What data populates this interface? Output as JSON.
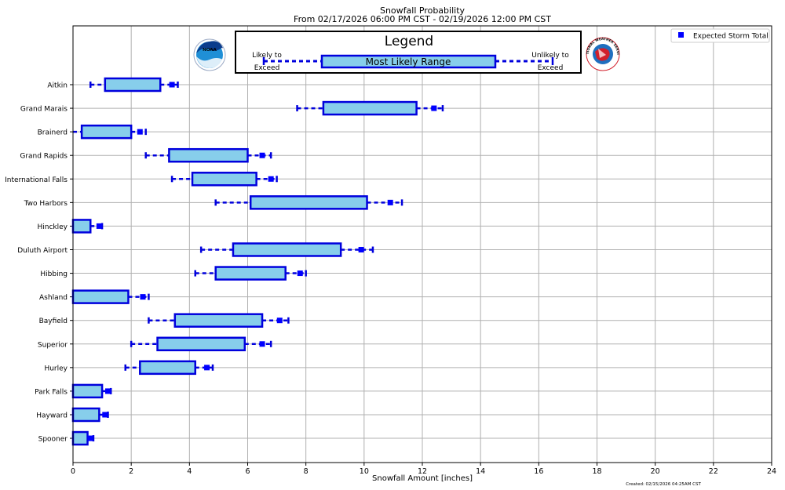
{
  "chart_data": {
    "type": "box",
    "title": "Snowfall Probability",
    "subtitle": "From 02/17/2026 06:00 PM CST - 02/19/2026 12:00 PM CST",
    "xlabel": "Snowfall Amount [inches]",
    "xlim": [
      0,
      24
    ],
    "xticks": [
      0,
      2,
      4,
      6,
      8,
      10,
      12,
      14,
      16,
      18,
      20,
      22,
      24
    ],
    "grid": true,
    "legend_entry": "Expected Storm Total",
    "legend_placement": "top-right",
    "created": "Created: 02/15/2026 04:25AM CST",
    "legend_box": {
      "title": "Legend",
      "left_label_line1": "Likely to",
      "left_label_line2": "Exceed",
      "center_label": "Most Likely Range",
      "right_label_line1": "Unlikely to",
      "right_label_line2": "Exceed"
    },
    "logos": {
      "noaa": "NOAA",
      "nws": "NATIONAL WEATHER SERVICE"
    },
    "locations": [
      {
        "name": "Aitkin",
        "low": 0.6,
        "box_low": 1.1,
        "box_high": 3.0,
        "expected": 3.4,
        "high": 3.6
      },
      {
        "name": "Grand Marais",
        "low": 7.7,
        "box_low": 8.6,
        "box_high": 11.8,
        "expected": 12.4,
        "high": 12.7
      },
      {
        "name": "Brainerd",
        "low": 0.0,
        "box_low": 0.3,
        "box_high": 2.0,
        "expected": 2.3,
        "high": 2.5
      },
      {
        "name": "Grand Rapids",
        "low": 2.5,
        "box_low": 3.3,
        "box_high": 6.0,
        "expected": 6.5,
        "high": 6.8
      },
      {
        "name": "International Falls",
        "low": 3.4,
        "box_low": 4.1,
        "box_high": 6.3,
        "expected": 6.8,
        "high": 7.0
      },
      {
        "name": "Two Harbors",
        "low": 4.9,
        "box_low": 6.1,
        "box_high": 10.1,
        "expected": 10.9,
        "high": 11.3
      },
      {
        "name": "Hinckley",
        "low": 0.0,
        "box_low": 0.0,
        "box_high": 0.6,
        "expected": 0.9,
        "high": 1.0
      },
      {
        "name": "Duluth Airport",
        "low": 4.4,
        "box_low": 5.5,
        "box_high": 9.2,
        "expected": 9.9,
        "high": 10.3
      },
      {
        "name": "Hibbing",
        "low": 4.2,
        "box_low": 4.9,
        "box_high": 7.3,
        "expected": 7.8,
        "high": 8.0
      },
      {
        "name": "Ashland",
        "low": 0.0,
        "box_low": 0.0,
        "box_high": 1.9,
        "expected": 2.4,
        "high": 2.6
      },
      {
        "name": "Bayfield",
        "low": 2.6,
        "box_low": 3.5,
        "box_high": 6.5,
        "expected": 7.1,
        "high": 7.4
      },
      {
        "name": "Superior",
        "low": 2.0,
        "box_low": 2.9,
        "box_high": 5.9,
        "expected": 6.5,
        "high": 6.8
      },
      {
        "name": "Hurley",
        "low": 1.8,
        "box_low": 2.3,
        "box_high": 4.2,
        "expected": 4.6,
        "high": 4.8
      },
      {
        "name": "Park Falls",
        "low": 0.0,
        "box_low": 0.0,
        "box_high": 1.0,
        "expected": 1.2,
        "high": 1.3
      },
      {
        "name": "Hayward",
        "low": 0.0,
        "box_low": 0.0,
        "box_high": 0.9,
        "expected": 1.1,
        "high": 1.2
      },
      {
        "name": "Spooner",
        "low": 0.0,
        "box_low": 0.0,
        "box_high": 0.5,
        "expected": 0.6,
        "high": 0.7
      }
    ]
  },
  "colors": {
    "box_fill": "#87ceeb",
    "box_edge": "#0000dd",
    "marker": "#0000ff",
    "grid": "#b0b0b0",
    "noaa_blue": "#1f8fd6",
    "noaa_dark": "#0b3c8c",
    "nws_red": "#d21f2b"
  }
}
